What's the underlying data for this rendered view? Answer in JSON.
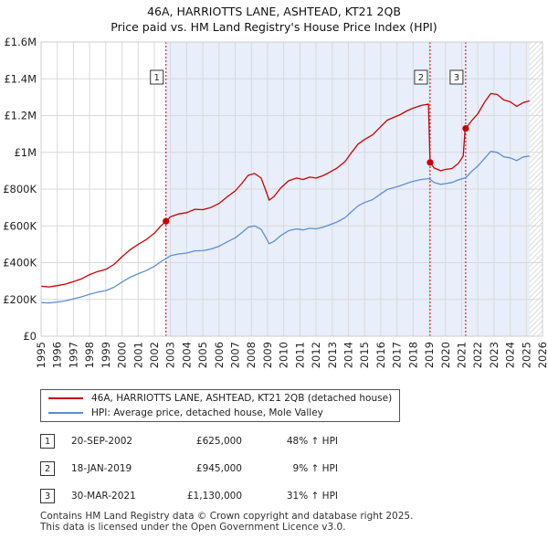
{
  "title": {
    "line1": "46A, HARRIOTTS LANE, ASHTEAD, KT21 2QB",
    "line2": "Price paid vs. HM Land Registry's House Price Index (HPI)"
  },
  "colors": {
    "property": "#cc0000",
    "hpi": "#5b8fd4",
    "band": "#e8eefa",
    "hatch": "#bbbbbb",
    "grid": "#d9d9d9",
    "event_line": "#cc0000"
  },
  "chart_data": {
    "type": "line",
    "title": "Price paid vs. HM Land Registry's House Price Index (HPI)",
    "xlabel": "",
    "ylabel": "",
    "xlim": [
      1995,
      2026
    ],
    "ylim": [
      0,
      1600000
    ],
    "x_ticks": [
      "1995",
      "1996",
      "1997",
      "1998",
      "1999",
      "2000",
      "2001",
      "2002",
      "2003",
      "2004",
      "2005",
      "2006",
      "2007",
      "2008",
      "2009",
      "2010",
      "2011",
      "2012",
      "2013",
      "2014",
      "2015",
      "2016",
      "2017",
      "2018",
      "2019",
      "2020",
      "2021",
      "2022",
      "2023",
      "2024",
      "2025",
      "2026"
    ],
    "y_ticks": [
      {
        "value": 0,
        "label": "£0"
      },
      {
        "value": 200000,
        "label": "£200K"
      },
      {
        "value": 400000,
        "label": "£400K"
      },
      {
        "value": 600000,
        "label": "£600K"
      },
      {
        "value": 800000,
        "label": "£800K"
      },
      {
        "value": 1000000,
        "label": "£1M"
      },
      {
        "value": 1200000,
        "label": "£1.2M"
      },
      {
        "value": 1400000,
        "label": "£1.4M"
      },
      {
        "value": 1600000,
        "label": "£1.6M"
      }
    ],
    "grid": true,
    "ownership_band": {
      "start": 2002.72,
      "end": 2025.2
    },
    "hatch_region": {
      "start": 2025.2,
      "end": 2026
    },
    "series": [
      {
        "name": "46A, HARRIOTTS LANE, ASHTEAD, KT21 2QB (detached house)",
        "color": "#cc0000",
        "points": [
          [
            1995.0,
            272000
          ],
          [
            1995.5,
            268000
          ],
          [
            1996.0,
            275000
          ],
          [
            1996.5,
            283000
          ],
          [
            1997.0,
            297000
          ],
          [
            1997.5,
            312000
          ],
          [
            1998.0,
            335000
          ],
          [
            1998.5,
            352000
          ],
          [
            1999.0,
            363000
          ],
          [
            1999.5,
            390000
          ],
          [
            2000.0,
            432000
          ],
          [
            2000.5,
            470000
          ],
          [
            2001.0,
            500000
          ],
          [
            2001.5,
            525000
          ],
          [
            2002.0,
            560000
          ],
          [
            2002.4,
            600000
          ],
          [
            2002.72,
            625000
          ],
          [
            2003.0,
            650000
          ],
          [
            2003.5,
            665000
          ],
          [
            2004.0,
            672000
          ],
          [
            2004.5,
            690000
          ],
          [
            2005.0,
            688000
          ],
          [
            2005.5,
            700000
          ],
          [
            2006.0,
            722000
          ],
          [
            2006.5,
            758000
          ],
          [
            2007.0,
            790000
          ],
          [
            2007.4,
            830000
          ],
          [
            2007.8,
            875000
          ],
          [
            2008.2,
            885000
          ],
          [
            2008.6,
            860000
          ],
          [
            2008.9,
            790000
          ],
          [
            2009.1,
            740000
          ],
          [
            2009.4,
            760000
          ],
          [
            2009.8,
            805000
          ],
          [
            2010.3,
            845000
          ],
          [
            2010.8,
            860000
          ],
          [
            2011.2,
            852000
          ],
          [
            2011.6,
            865000
          ],
          [
            2012.0,
            860000
          ],
          [
            2012.4,
            872000
          ],
          [
            2012.8,
            890000
          ],
          [
            2013.3,
            915000
          ],
          [
            2013.8,
            950000
          ],
          [
            2014.2,
            1000000
          ],
          [
            2014.6,
            1045000
          ],
          [
            2015.0,
            1070000
          ],
          [
            2015.5,
            1095000
          ],
          [
            2016.0,
            1140000
          ],
          [
            2016.4,
            1175000
          ],
          [
            2016.8,
            1190000
          ],
          [
            2017.2,
            1205000
          ],
          [
            2017.6,
            1225000
          ],
          [
            2018.0,
            1240000
          ],
          [
            2018.5,
            1255000
          ],
          [
            2018.95,
            1262000
          ],
          [
            2019.05,
            945000
          ],
          [
            2019.3,
            915000
          ],
          [
            2019.7,
            900000
          ],
          [
            2020.0,
            907000
          ],
          [
            2020.4,
            912000
          ],
          [
            2020.8,
            940000
          ],
          [
            2021.1,
            980000
          ],
          [
            2021.2,
            1110000
          ],
          [
            2021.25,
            1130000
          ],
          [
            2021.6,
            1170000
          ],
          [
            2022.0,
            1210000
          ],
          [
            2022.4,
            1270000
          ],
          [
            2022.8,
            1320000
          ],
          [
            2023.2,
            1315000
          ],
          [
            2023.6,
            1285000
          ],
          [
            2024.0,
            1275000
          ],
          [
            2024.4,
            1250000
          ],
          [
            2024.8,
            1270000
          ],
          [
            2025.2,
            1280000
          ]
        ]
      },
      {
        "name": "HPI: Average price, detached house, Mole Valley",
        "color": "#5b8fd4",
        "points": [
          [
            1995.0,
            183000
          ],
          [
            1995.5,
            181000
          ],
          [
            1996.0,
            186000
          ],
          [
            1996.5,
            192000
          ],
          [
            1997.0,
            203000
          ],
          [
            1997.5,
            214000
          ],
          [
            1998.0,
            228000
          ],
          [
            1998.5,
            240000
          ],
          [
            1999.0,
            248000
          ],
          [
            1999.5,
            266000
          ],
          [
            2000.0,
            294000
          ],
          [
            2000.5,
            320000
          ],
          [
            2001.0,
            340000
          ],
          [
            2001.5,
            357000
          ],
          [
            2002.0,
            380000
          ],
          [
            2002.4,
            405000
          ],
          [
            2002.72,
            422000
          ],
          [
            2003.0,
            438000
          ],
          [
            2003.5,
            447000
          ],
          [
            2004.0,
            452000
          ],
          [
            2004.5,
            464000
          ],
          [
            2005.0,
            465000
          ],
          [
            2005.5,
            474000
          ],
          [
            2006.0,
            489000
          ],
          [
            2006.5,
            513000
          ],
          [
            2007.0,
            535000
          ],
          [
            2007.4,
            562000
          ],
          [
            2007.8,
            593000
          ],
          [
            2008.2,
            600000
          ],
          [
            2008.6,
            582000
          ],
          [
            2008.9,
            535000
          ],
          [
            2009.1,
            503000
          ],
          [
            2009.4,
            516000
          ],
          [
            2009.8,
            546000
          ],
          [
            2010.3,
            574000
          ],
          [
            2010.8,
            584000
          ],
          [
            2011.2,
            578000
          ],
          [
            2011.6,
            587000
          ],
          [
            2012.0,
            584000
          ],
          [
            2012.4,
            592000
          ],
          [
            2012.8,
            604000
          ],
          [
            2013.3,
            621000
          ],
          [
            2013.8,
            645000
          ],
          [
            2014.2,
            678000
          ],
          [
            2014.6,
            709000
          ],
          [
            2015.0,
            727000
          ],
          [
            2015.5,
            743000
          ],
          [
            2016.0,
            774000
          ],
          [
            2016.4,
            798000
          ],
          [
            2016.8,
            808000
          ],
          [
            2017.2,
            818000
          ],
          [
            2017.6,
            831000
          ],
          [
            2018.0,
            842000
          ],
          [
            2018.5,
            852000
          ],
          [
            2019.0,
            857000
          ],
          [
            2019.3,
            836000
          ],
          [
            2019.7,
            826000
          ],
          [
            2020.0,
            830000
          ],
          [
            2020.4,
            836000
          ],
          [
            2020.8,
            850000
          ],
          [
            2021.25,
            862000
          ],
          [
            2021.6,
            895000
          ],
          [
            2022.0,
            925000
          ],
          [
            2022.4,
            965000
          ],
          [
            2022.8,
            1005000
          ],
          [
            2023.2,
            1000000
          ],
          [
            2023.6,
            976000
          ],
          [
            2024.0,
            970000
          ],
          [
            2024.4,
            955000
          ],
          [
            2024.8,
            975000
          ],
          [
            2025.2,
            980000
          ]
        ]
      }
    ],
    "events": [
      {
        "id": "1",
        "x": 2002.72,
        "y": 625000
      },
      {
        "id": "2",
        "x": 2019.05,
        "y": 945000
      },
      {
        "id": "3",
        "x": 2021.25,
        "y": 1130000
      }
    ]
  },
  "legend": {
    "property_label": "46A, HARRIOTTS LANE, ASHTEAD, KT21 2QB (detached house)",
    "hpi_label": "HPI: Average price, detached house, Mole Valley"
  },
  "transactions": [
    {
      "num": "1",
      "date": "20-SEP-2002",
      "price": "£625,000",
      "hpi": "48% ↑ HPI"
    },
    {
      "num": "2",
      "date": "18-JAN-2019",
      "price": "£945,000",
      "hpi": "9% ↑ HPI"
    },
    {
      "num": "3",
      "date": "30-MAR-2021",
      "price": "£1,130,000",
      "hpi": "31% ↑ HPI"
    }
  ],
  "footer": {
    "line1": "Contains HM Land Registry data © Crown copyright and database right 2025.",
    "line2": "This data is licensed under the Open Government Licence v3.0."
  }
}
